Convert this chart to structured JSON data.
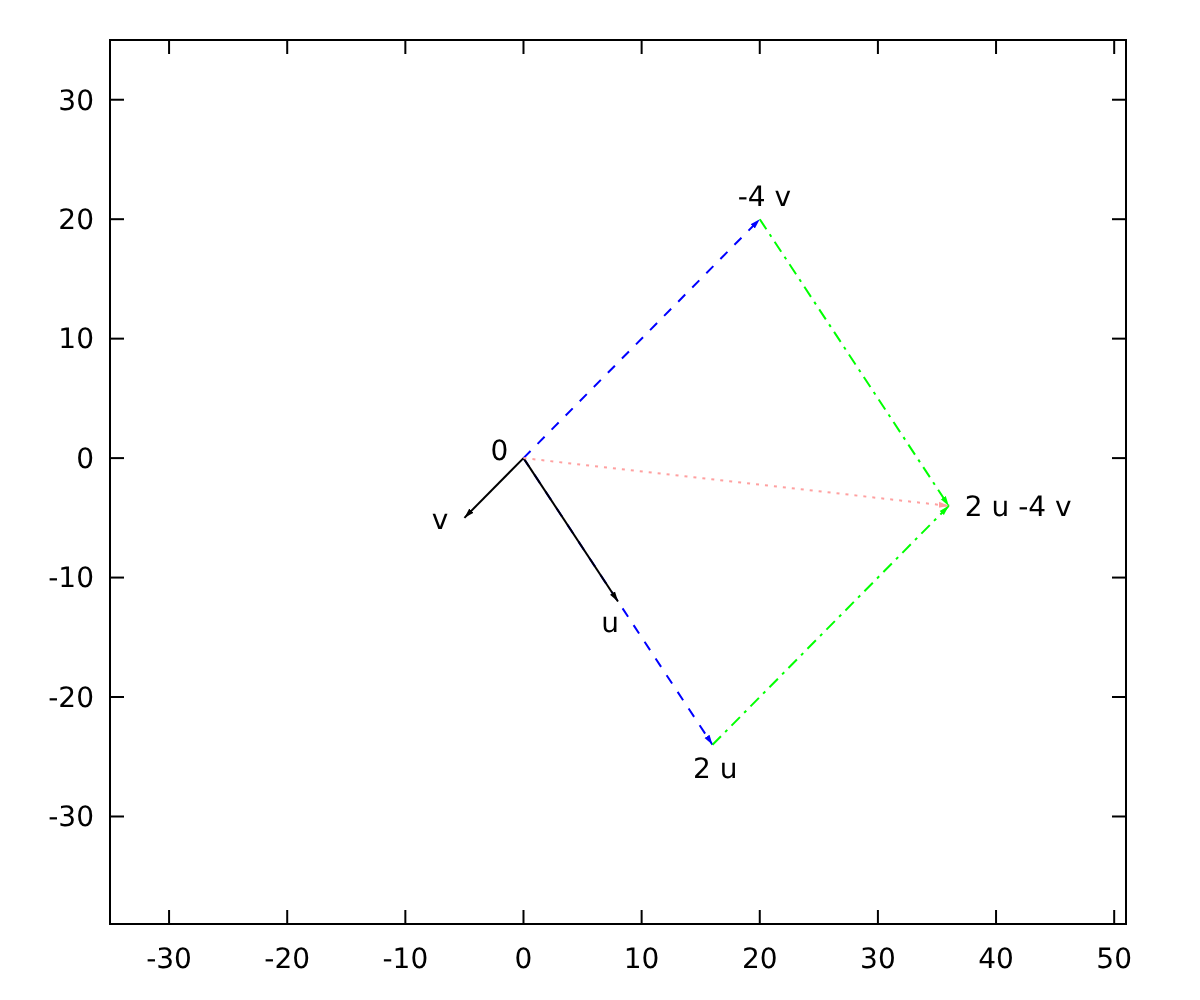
{
  "chart_data": {
    "type": "line",
    "xlim": [
      -35,
      51
    ],
    "ylim": [
      -39,
      35
    ],
    "xticks": [
      -30,
      -20,
      -10,
      0,
      10,
      20,
      30,
      40,
      50
    ],
    "yticks": [
      -30,
      -20,
      -10,
      0,
      10,
      20,
      30
    ],
    "grid": false,
    "marker": "none",
    "series": [
      {
        "color": "#0000ff",
        "line_style": "dashed",
        "x": [
          0,
          20
        ],
        "values": [
          0,
          20
        ]
      },
      {
        "color": "#0000ff",
        "line_style": "dashed",
        "x": [
          0,
          16
        ],
        "values": [
          0,
          -24
        ]
      },
      {
        "color": "#000000",
        "line_style": "solid",
        "x": [
          0,
          8
        ],
        "values": [
          0,
          -12
        ]
      },
      {
        "color": "#000000",
        "line_style": "solid",
        "x": [
          0,
          -5
        ],
        "values": [
          0,
          -5
        ]
      },
      {
        "color": "#00ff00",
        "line_style": "dashdot",
        "x": [
          20,
          36
        ],
        "values": [
          20,
          -4
        ]
      },
      {
        "color": "#00ff00",
        "line_style": "dashdot",
        "x": [
          16,
          36
        ],
        "values": [
          -24,
          -4
        ]
      },
      {
        "color": "#ffa0a0",
        "line_style": "dotted",
        "x": [
          0,
          36
        ],
        "values": [
          0,
          -4
        ]
      }
    ],
    "annotations": [
      {
        "text": "0",
        "x": 0,
        "y": 0
      },
      {
        "text": "v",
        "x": -5,
        "y": -5
      },
      {
        "text": "u",
        "x": 8,
        "y": -12
      },
      {
        "text": "2 u",
        "x": 16,
        "y": -24
      },
      {
        "text": "-4 v",
        "x": 20,
        "y": 20
      },
      {
        "text": "2 u -4 v",
        "x": 36,
        "y": -4
      }
    ]
  }
}
